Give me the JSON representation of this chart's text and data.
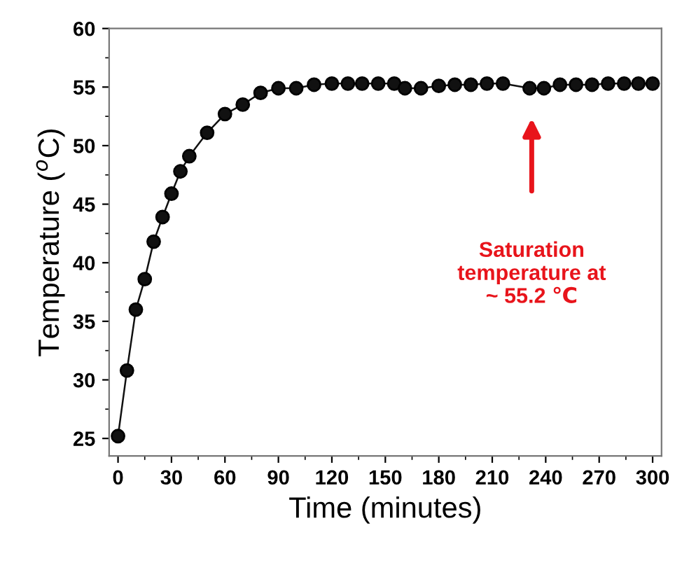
{
  "chart_data": {
    "type": "line",
    "xlabel": "Time (minutes)",
    "ylabel": "Temperature ($^{o}$C)",
    "series": [
      {
        "color": "#111111",
        "x": [
          0,
          5,
          10,
          15,
          20,
          25,
          30,
          35,
          40,
          50,
          60,
          70,
          80,
          90,
          100,
          110,
          120,
          129,
          137,
          146,
          155,
          161,
          170,
          180,
          189,
          198,
          207,
          216,
          231,
          239,
          248,
          257,
          266,
          275,
          284,
          292,
          300
        ],
        "values": [
          25.2,
          30.8,
          36.0,
          38.6,
          41.8,
          43.9,
          45.9,
          47.8,
          49.1,
          51.1,
          52.7,
          53.5,
          54.5,
          54.9,
          54.9,
          55.2,
          55.3,
          55.3,
          55.3,
          55.3,
          55.3,
          54.9,
          54.9,
          55.1,
          55.2,
          55.2,
          55.3,
          55.3,
          54.9,
          54.9,
          55.2,
          55.2,
          55.2,
          55.3,
          55.3,
          55.3,
          55.3
        ]
      }
    ],
    "marker": "circle",
    "line_style": "solid",
    "grid": false,
    "legend": false,
    "xlim": [
      -5,
      305
    ],
    "ylim": [
      23.5,
      60
    ],
    "xticks": [
      0,
      30,
      60,
      90,
      120,
      150,
      180,
      210,
      240,
      270,
      300
    ],
    "yticks": [
      25,
      30,
      35,
      40,
      45,
      50,
      55,
      60
    ],
    "annotations": [
      "Saturation\ntemperature at\n~ 55.2 ℃"
    ]
  }
}
